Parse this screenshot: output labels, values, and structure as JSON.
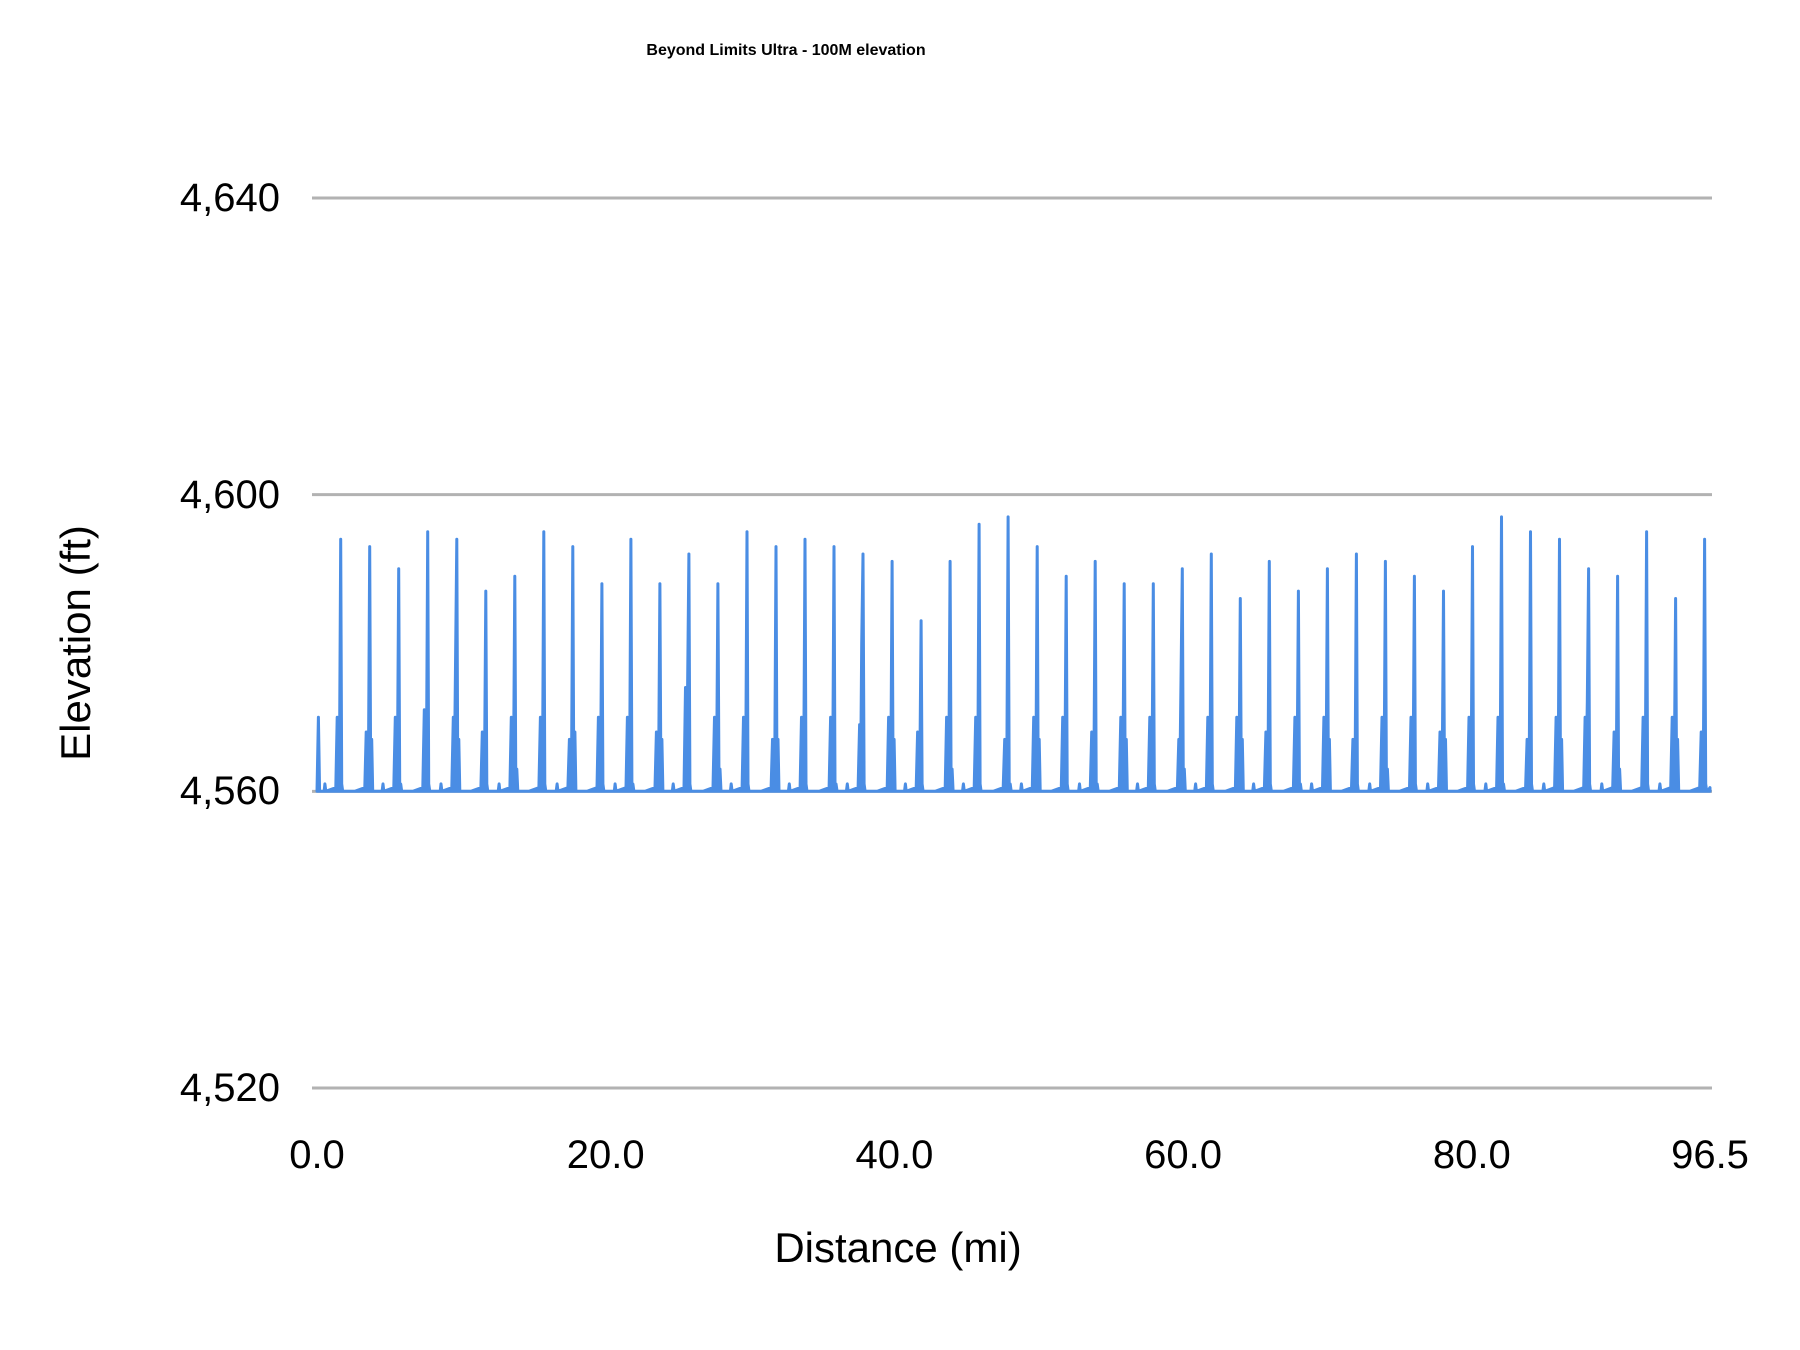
{
  "chart_data": {
    "type": "line",
    "title": "Beyond Limits Ultra - 100M elevation",
    "xlabel": "Distance (mi)",
    "ylabel": "Elevation (ft)",
    "xlim": [
      0,
      96.5
    ],
    "ylim": [
      4520,
      4640
    ],
    "grid": true,
    "legend": "none",
    "series_name": "Elevation",
    "series_color": "#4a8de4",
    "gridline_color": "#b2b2b2",
    "text_color": "#000000",
    "x_ticks": [
      {
        "value": 0,
        "label": "0.0"
      },
      {
        "value": 20,
        "label": "20.0"
      },
      {
        "value": 40,
        "label": "40.0"
      },
      {
        "value": 60,
        "label": "60.0"
      },
      {
        "value": 80,
        "label": "80.0"
      },
      {
        "value": 96.5,
        "label": "96.5"
      }
    ],
    "y_ticks": [
      {
        "value": 4520,
        "label": "4,520"
      },
      {
        "value": 4560,
        "label": "4,560"
      },
      {
        "value": 4600,
        "label": "4,600"
      },
      {
        "value": 4640,
        "label": "4,640"
      }
    ],
    "baseline_ft": 4560,
    "loop_miles": 2.0104,
    "start_spike": [
      [
        0.0,
        4560
      ],
      [
        0.1,
        4570
      ],
      [
        0.18,
        4560
      ]
    ],
    "loop_template": {
      "bump_off": 0.55,
      "shoulder_off": 1.4,
      "dip_off": 1.47,
      "foot_off": 1.55,
      "peak_off": 1.64,
      "down_off": 1.71,
      "post_off": 1.78,
      "end_off": 1.85
    },
    "loops": [
      {
        "peak": 4594,
        "shoulder": 4570,
        "post": 4560,
        "bump": 4561
      },
      {
        "peak": 4593,
        "shoulder": 4568,
        "post": 4567,
        "bump": 4560
      },
      {
        "peak": 4590,
        "shoulder": 4570,
        "post": 4561,
        "bump": 4561
      },
      {
        "peak": 4595,
        "shoulder": 4571,
        "post": 4560,
        "bump": 4560
      },
      {
        "peak": 4594,
        "shoulder": 4570,
        "post": 4567,
        "bump": 4561,
        "step": 4577
      },
      {
        "peak": 4587,
        "shoulder": 4568,
        "post": 4560,
        "bump": 4560
      },
      {
        "peak": 4589,
        "shoulder": 4570,
        "post": 4563,
        "bump": 4561
      },
      {
        "peak": 4595,
        "shoulder": 4570,
        "post": 4560,
        "bump": 4560
      },
      {
        "peak": 4593,
        "shoulder": 4567,
        "post": 4568,
        "bump": 4561
      },
      {
        "peak": 4588,
        "shoulder": 4570,
        "post": 4560,
        "bump": 4560
      },
      {
        "peak": 4594,
        "shoulder": 4570,
        "post": 4561,
        "bump": 4561
      },
      {
        "peak": 4588,
        "shoulder": 4568,
        "post": 4567,
        "bump": 4560
      },
      {
        "peak": 4592,
        "shoulder": 4574,
        "post": 4560,
        "bump": 4561,
        "step": 4574
      },
      {
        "peak": 4588,
        "shoulder": 4570,
        "post": 4563,
        "bump": 4560
      },
      {
        "peak": 4595,
        "shoulder": 4570,
        "post": 4560,
        "bump": 4561
      },
      {
        "peak": 4593,
        "shoulder": 4567,
        "post": 4567,
        "bump": 4560
      },
      {
        "peak": 4594,
        "shoulder": 4570,
        "post": 4560,
        "bump": 4561
      },
      {
        "peak": 4593,
        "shoulder": 4570,
        "post": 4561,
        "bump": 4560
      },
      {
        "peak": 4592,
        "shoulder": 4569,
        "post": 4560,
        "bump": 4561,
        "step": 4580
      },
      {
        "peak": 4591,
        "shoulder": 4570,
        "post": 4567,
        "bump": 4560
      },
      {
        "peak": 4583,
        "shoulder": 4568,
        "post": 4560,
        "bump": 4561
      },
      {
        "peak": 4591,
        "shoulder": 4570,
        "post": 4563,
        "bump": 4560
      },
      {
        "peak": 4596,
        "shoulder": 4570,
        "post": 4560,
        "bump": 4561
      },
      {
        "peak": 4597,
        "shoulder": 4567,
        "post": 4561,
        "bump": 4560
      },
      {
        "peak": 4593,
        "shoulder": 4570,
        "post": 4567,
        "bump": 4561
      },
      {
        "peak": 4589,
        "shoulder": 4570,
        "post": 4560,
        "bump": 4560
      },
      {
        "peak": 4591,
        "shoulder": 4568,
        "post": 4561,
        "bump": 4561
      },
      {
        "peak": 4588,
        "shoulder": 4570,
        "post": 4567,
        "bump": 4560
      },
      {
        "peak": 4588,
        "shoulder": 4570,
        "post": 4560,
        "bump": 4561
      },
      {
        "peak": 4590,
        "shoulder": 4567,
        "post": 4563,
        "bump": 4560,
        "step": 4575
      },
      {
        "peak": 4592,
        "shoulder": 4570,
        "post": 4560,
        "bump": 4561
      },
      {
        "peak": 4586,
        "shoulder": 4570,
        "post": 4567,
        "bump": 4560
      },
      {
        "peak": 4591,
        "shoulder": 4568,
        "post": 4560,
        "bump": 4561
      },
      {
        "peak": 4587,
        "shoulder": 4570,
        "post": 4561,
        "bump": 4560
      },
      {
        "peak": 4590,
        "shoulder": 4570,
        "post": 4567,
        "bump": 4561
      },
      {
        "peak": 4592,
        "shoulder": 4567,
        "post": 4560,
        "bump": 4560
      },
      {
        "peak": 4591,
        "shoulder": 4570,
        "post": 4563,
        "bump": 4561
      },
      {
        "peak": 4589,
        "shoulder": 4570,
        "post": 4560,
        "bump": 4560
      },
      {
        "peak": 4587,
        "shoulder": 4568,
        "post": 4567,
        "bump": 4561
      },
      {
        "peak": 4593,
        "shoulder": 4570,
        "post": 4560,
        "bump": 4560
      },
      {
        "peak": 4597,
        "shoulder": 4570,
        "post": 4561,
        "bump": 4561
      },
      {
        "peak": 4595,
        "shoulder": 4567,
        "post": 4560,
        "bump": 4560
      },
      {
        "peak": 4594,
        "shoulder": 4570,
        "post": 4567,
        "bump": 4561
      },
      {
        "peak": 4590,
        "shoulder": 4570,
        "post": 4560,
        "bump": 4560,
        "step": 4572
      },
      {
        "peak": 4589,
        "shoulder": 4568,
        "post": 4563,
        "bump": 4561
      },
      {
        "peak": 4595,
        "shoulder": 4570,
        "post": 4560,
        "bump": 4560
      },
      {
        "peak": 4586,
        "shoulder": 4570,
        "post": 4567,
        "bump": 4561
      },
      {
        "peak": 4594,
        "shoulder": 4568,
        "post": 4560,
        "bump": 4560
      }
    ]
  }
}
